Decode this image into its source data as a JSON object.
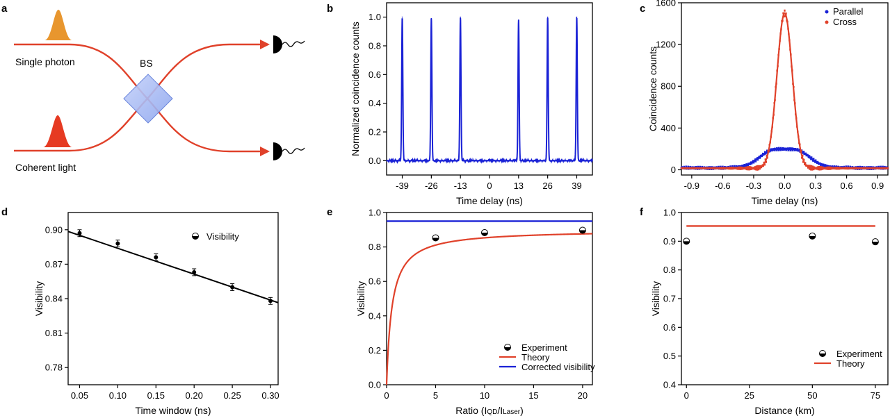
{
  "panels": {
    "a": {
      "label": "a",
      "single_photon_label": "Single photon",
      "coherent_light_label": "Coherent light",
      "bs_label": "BS",
      "colors": {
        "single_photon": "#e8962e",
        "coherent": "#e63a22",
        "beam": "#e0412a",
        "bs": "#9bb1f0"
      }
    }
  },
  "chart_data": [
    {
      "id": "b",
      "panel_label": "b",
      "type": "line",
      "xlabel": "Time delay (ns)",
      "ylabel": "Normalized coincidence counts",
      "xlim": [
        -46,
        46
      ],
      "ylim": [
        -0.1,
        1.1
      ],
      "xticks": [
        -39,
        -26,
        -13,
        0,
        13,
        26,
        39
      ],
      "xtick_labels": [
        "-39",
        "-26",
        "-13",
        "0",
        "13",
        "26",
        "39"
      ],
      "yticks": [
        0.0,
        0.2,
        0.4,
        0.6,
        0.8,
        1.0
      ],
      "ytick_labels": [
        "0.0",
        "0.2",
        "0.4",
        "0.6",
        "0.8",
        "1.0"
      ],
      "color": "#1a22d6",
      "peaks": [
        {
          "x": -39,
          "y": 1.0
        },
        {
          "x": -26,
          "y": 0.99
        },
        {
          "x": -13,
          "y": 1.0
        },
        {
          "x": 0,
          "y": 0.01
        },
        {
          "x": 13,
          "y": 0.98
        },
        {
          "x": 26,
          "y": 1.0
        },
        {
          "x": 39,
          "y": 1.0
        }
      ]
    },
    {
      "id": "c",
      "panel_label": "c",
      "type": "scatter",
      "xlabel": "Time delay (ns)",
      "ylabel": "Coincidence counts",
      "xlim": [
        -1.0,
        1.0
      ],
      "ylim": [
        -50,
        1600
      ],
      "xticks": [
        -0.9,
        -0.6,
        -0.3,
        0.0,
        0.3,
        0.6,
        0.9
      ],
      "xtick_labels": [
        "-0.9",
        "-0.6",
        "-0.3",
        "0.0",
        "0.3",
        "0.6",
        "0.9"
      ],
      "yticks": [
        0,
        400,
        800,
        1200,
        1600
      ],
      "ytick_labels": [
        "0",
        "400",
        "800",
        "1200",
        "1600"
      ],
      "legend_position": "top-right",
      "series": [
        {
          "name": "Parallel",
          "color": "#1a22d6",
          "peak": 220,
          "dip": 170,
          "width": 0.17
        },
        {
          "name": "Cross",
          "color": "#e0412a",
          "peak": 1500,
          "width": 0.13,
          "baseline": 15
        }
      ]
    },
    {
      "id": "d",
      "panel_label": "d",
      "type": "line",
      "xlabel": "Time window (ns)",
      "ylabel": "Visibility",
      "xlim": [
        0.035,
        0.31
      ],
      "ylim": [
        0.765,
        0.915
      ],
      "xticks": [
        0.05,
        0.1,
        0.15,
        0.2,
        0.25,
        0.3
      ],
      "xtick_labels": [
        "0.05",
        "0.10",
        "0.15",
        "0.20",
        "0.25",
        "0.30"
      ],
      "yticks": [
        0.78,
        0.81,
        0.84,
        0.87,
        0.9
      ],
      "ytick_labels": [
        "0.78",
        "0.81",
        "0.84",
        "0.87",
        "0.90"
      ],
      "legend_position": "top-right",
      "series": [
        {
          "name": "Visibility",
          "x": [
            0.05,
            0.1,
            0.15,
            0.2,
            0.25,
            0.3
          ],
          "y": [
            0.897,
            0.888,
            0.876,
            0.863,
            0.85,
            0.838
          ],
          "err": [
            0.003,
            0.003,
            0.003,
            0.003,
            0.003,
            0.003
          ]
        }
      ],
      "line": {
        "x": [
          0.035,
          0.31
        ],
        "y": [
          0.8985,
          0.8365
        ]
      }
    },
    {
      "id": "e",
      "panel_label": "e",
      "type": "line",
      "xlabel": "Ratio (I",
      "xlabel_sub1": "QD",
      "xlabel_mid": "/I",
      "xlabel_sub2": "Laser",
      "xlabel_end": ")",
      "ylabel": "Visibility",
      "xlim": [
        0,
        21
      ],
      "ylim": [
        0.0,
        1.0
      ],
      "xticks": [
        0,
        5,
        10,
        15,
        20
      ],
      "xtick_labels": [
        "0",
        "5",
        "10",
        "15",
        "20"
      ],
      "yticks": [
        0.0,
        0.2,
        0.4,
        0.6,
        0.8,
        1.0
      ],
      "ytick_labels": [
        "0.0",
        "0.2",
        "0.4",
        "0.6",
        "0.8",
        "1.0"
      ],
      "legend_position": "bottom-right",
      "series": [
        {
          "name": "Experiment",
          "x": [
            5,
            10,
            20
          ],
          "y": [
            0.853,
            0.883,
            0.897
          ]
        },
        {
          "name": "Theory",
          "color": "#e0412a",
          "vmax": 0.9,
          "k": 0.55
        },
        {
          "name": "Corrected visibility",
          "color": "#1a22d6",
          "y": 0.95
        }
      ]
    },
    {
      "id": "f",
      "panel_label": "f",
      "type": "scatter",
      "xlabel": "Distance (km)",
      "ylabel": "Visibility",
      "xlim": [
        -2,
        80
      ],
      "ylim": [
        0.4,
        1.0
      ],
      "xticks": [
        0,
        25,
        50,
        75
      ],
      "xtick_labels": [
        "0",
        "25",
        "50",
        "75"
      ],
      "yticks": [
        0.4,
        0.5,
        0.6,
        0.7,
        0.8,
        0.9,
        1.0
      ],
      "ytick_labels": [
        "0.4",
        "0.5",
        "0.6",
        "0.7",
        "0.8",
        "0.9",
        "1.0"
      ],
      "legend_position": "bottom-right",
      "series": [
        {
          "name": "Experiment",
          "x": [
            0,
            50,
            75
          ],
          "y": [
            0.9,
            0.918,
            0.898
          ]
        },
        {
          "name": "Theory",
          "color": "#e0412a",
          "y": 0.953,
          "xrange": [
            0,
            75
          ]
        }
      ]
    }
  ]
}
